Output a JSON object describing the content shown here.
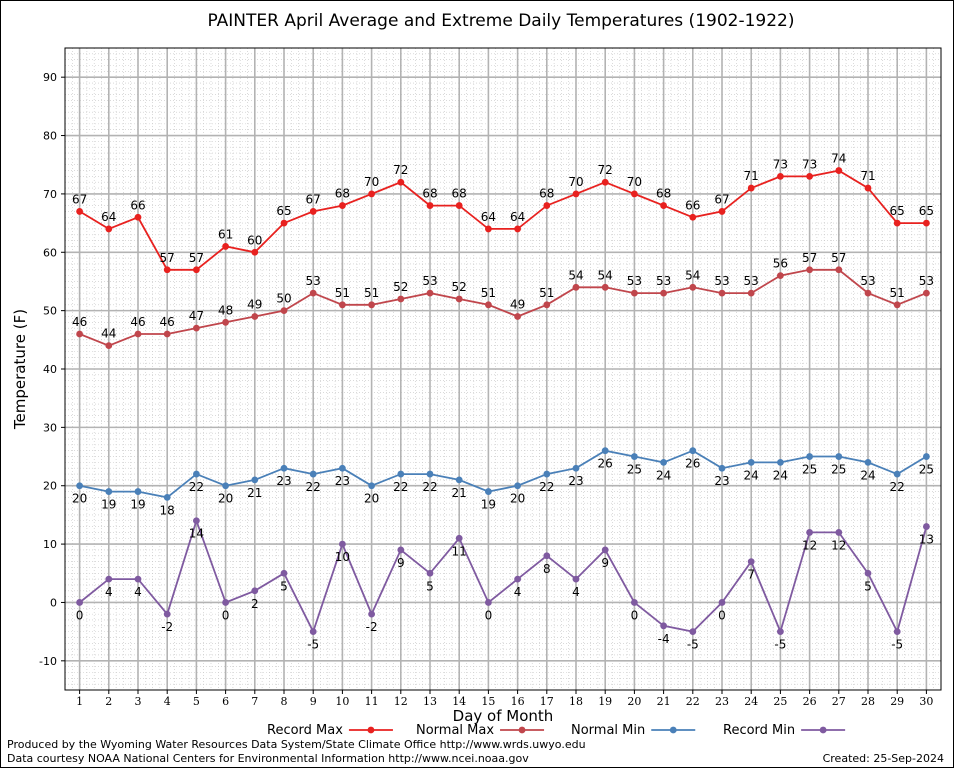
{
  "chart_data": {
    "type": "line",
    "title": "PAINTER April Average and Extreme Daily Temperatures (1902-1922)",
    "xlabel": "Day of Month",
    "ylabel": "Temperature (F)",
    "xlim": [
      0.5,
      30.5
    ],
    "ylim": [
      -15,
      95
    ],
    "y_ticks": [
      -10,
      0,
      10,
      20,
      30,
      40,
      50,
      60,
      70,
      80,
      90
    ],
    "x": [
      1,
      2,
      3,
      4,
      5,
      6,
      7,
      8,
      9,
      10,
      11,
      12,
      13,
      14,
      15,
      16,
      17,
      18,
      19,
      20,
      21,
      22,
      23,
      24,
      25,
      26,
      27,
      28,
      29,
      30
    ],
    "grid": true,
    "legend_placement": "bottom",
    "series": [
      {
        "name": "Record Max",
        "color": "#e8211f",
        "label_position": "above",
        "values": [
          67,
          64,
          66,
          57,
          57,
          61,
          60,
          65,
          67,
          68,
          70,
          72,
          68,
          68,
          64,
          64,
          68,
          70,
          72,
          70,
          68,
          66,
          67,
          71,
          73,
          73,
          74,
          71,
          65,
          65
        ]
      },
      {
        "name": "Normal Max",
        "color": "#c0464c",
        "label_position": "above",
        "values": [
          46,
          44,
          46,
          46,
          47,
          48,
          49,
          50,
          53,
          51,
          51,
          52,
          53,
          52,
          51,
          49,
          51,
          54,
          54,
          53,
          53,
          54,
          53,
          53,
          56,
          57,
          57,
          53,
          51,
          53
        ]
      },
      {
        "name": "Normal Min",
        "color": "#4a80b8",
        "label_position": "below",
        "values": [
          20,
          19,
          19,
          18,
          22,
          20,
          21,
          23,
          22,
          23,
          20,
          22,
          22,
          21,
          19,
          20,
          22,
          23,
          26,
          25,
          24,
          26,
          23,
          24,
          24,
          25,
          25,
          24,
          22,
          25
        ]
      },
      {
        "name": "Record Min",
        "color": "#7f5aa0",
        "label_position": "below",
        "values": [
          0,
          4,
          4,
          -2,
          14,
          0,
          2,
          5,
          -5,
          10,
          -2,
          9,
          5,
          11,
          0,
          4,
          8,
          4,
          9,
          0,
          -4,
          -5,
          0,
          7,
          -5,
          12,
          12,
          5,
          -5,
          13
        ]
      }
    ]
  },
  "footer": {
    "produced_by": "Produced by the Wyoming Water Resources Data System/State Climate Office http://www.wrds.uwyo.edu",
    "courtesy": "Data courtesy NOAA National Centers for Environmental Information http://www.ncei.noaa.gov",
    "created": "Created:  25-Sep-2024"
  }
}
